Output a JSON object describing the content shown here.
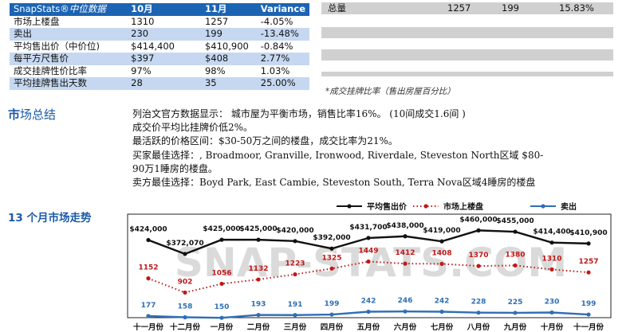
{
  "stats_table": {
    "brand": "SnapStats®",
    "brand_sub": "中位数据",
    "col_prev": "10月",
    "col_curr": "11月",
    "col_var": "Variance",
    "rows": [
      {
        "label": "市场上楼盘",
        "prev": "1310",
        "curr": "1257",
        "var": "-4.05%"
      },
      {
        "label": "卖出",
        "prev": "230",
        "curr": "199",
        "var": "-13.48%"
      },
      {
        "label": "平均售出价（中价位)",
        "prev": "$414,400",
        "curr": "$410,900",
        "var": "-0.84%"
      },
      {
        "label": "每平方尺售价",
        "prev": "$397",
        "curr": "$408",
        "var": "2.77%"
      },
      {
        "label": "成交挂牌性价比率",
        "prev": "97%",
        "curr": "98%",
        "var": "1.03%"
      },
      {
        "label": "平均挂牌售出天数",
        "prev": "28",
        "curr": "35",
        "var": "25.00%"
      }
    ]
  },
  "totals": {
    "label": "总量",
    "listings": "1257",
    "sold": "199",
    "ratio": "15.83%"
  },
  "caption": "*成交挂牌比率（售出房屋百分比）",
  "summary": {
    "title_bold": "市",
    "title_rest": "场总结",
    "lines": [
      "列治文官方数据显示：  城市屋为平衡市场，销售比率16%。 (10间成交1.6间 )",
      "成交价平均比挂牌价低2%。",
      "最活跃的价格区间：$30-50万之间的楼盘，成交比率为21%。",
      "买家最佳选择：, Broadmoor, Granville, Ironwood, Riverdale, Steveston North区域 $80-",
      "90万1睡房的楼盘。",
      "卖方最佳选择：Boyd Park, East Cambie, Steveston South, Terra Nova区域4睡房的楼盘"
    ]
  },
  "trend_title": "13 个月市场走势",
  "watermark": "SNAP-STATS.COM",
  "chart_data": {
    "type": "line",
    "categories": [
      "十一月份",
      "十二月份",
      "一月份",
      "二月份",
      "三月份",
      "四月份",
      "五月份",
      "六月份",
      "七月份",
      "八月份",
      "九月份",
      "十月份",
      "十一月份"
    ],
    "series": [
      {
        "name": "平均售出价",
        "color": "#111111",
        "style": "solid",
        "values": [
          424000,
          372070,
          425000,
          425000,
          420000,
          392000,
          431700,
          438000,
          419000,
          460000,
          455000,
          414400,
          410900
        ],
        "labels": [
          "$424,000",
          "$372,070",
          "$425,000",
          "$425,000",
          "$420,000",
          "$392,000",
          "$431,700",
          "$438,000",
          "$419,000",
          "$460,000",
          "$455,000",
          "$414,400",
          "$410,900"
        ]
      },
      {
        "name": "市场上楼盘",
        "color": "#c01818",
        "style": "dotted",
        "values": [
          1152,
          902,
          1056,
          1132,
          1223,
          1325,
          1449,
          1412,
          1408,
          1370,
          1380,
          1310,
          1257
        ]
      },
      {
        "name": "卖出",
        "color": "#2f6fb5",
        "style": "solid",
        "values": [
          177,
          158,
          150,
          193,
          191,
          199,
          242,
          246,
          242,
          228,
          225,
          230,
          199
        ]
      }
    ],
    "legend_position": "top",
    "grid": false
  }
}
